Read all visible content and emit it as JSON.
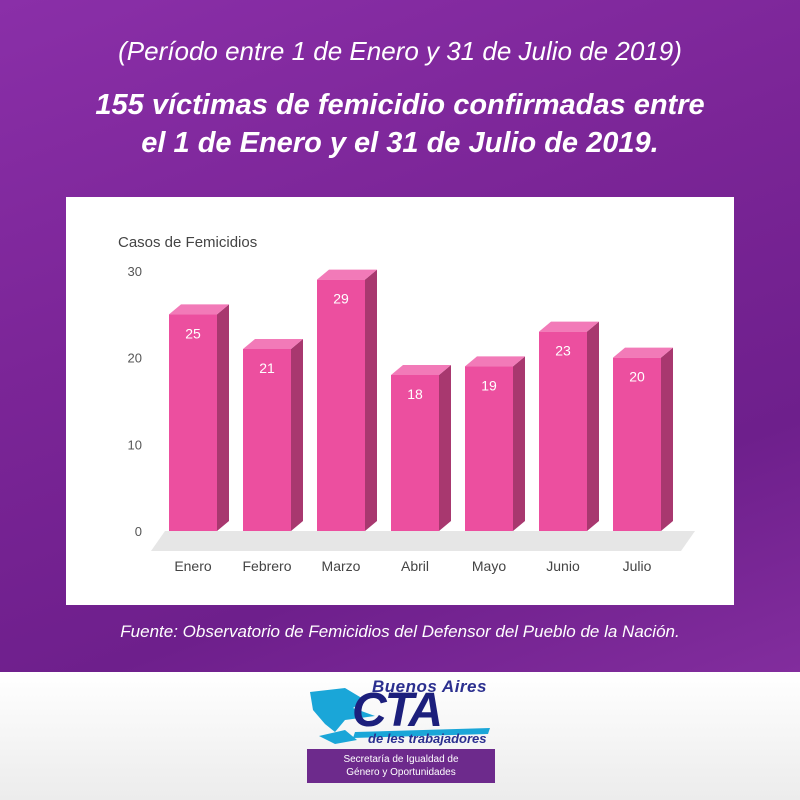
{
  "period": "(Período entre 1 de Enero y 31 de Julio de 2019)",
  "headline": {
    "line1": "155 víctimas de femicidio confirmadas entre",
    "line2": "el 1 de Enero y el 31 de Julio de 2019."
  },
  "source": "Fuente: Observatorio de Femicidios del Defensor del Pueblo de la Nación.",
  "logo": {
    "top_text": "Buenos Aires",
    "main_text": "CTA",
    "sub_text": "de les trabajadores"
  },
  "secretaria": {
    "line1": "Secretaría de Igualdad de",
    "line2": "Género y Oportunidades"
  },
  "colors": {
    "background": "#7b2597",
    "bar_front": "#ec4f9f",
    "bar_side": "#a8386f",
    "bar_top": "#f27ab8",
    "label_text": "#ffffff"
  },
  "chart_data": {
    "type": "bar",
    "title": "",
    "ylabel": "Casos de Femicidios",
    "xlabel": "",
    "categories": [
      "Enero",
      "Febrero",
      "Marzo",
      "Abril",
      "Mayo",
      "Junio",
      "Julio"
    ],
    "values": [
      25,
      21,
      29,
      18,
      19,
      23,
      20
    ],
    "yticks": [
      0,
      10,
      20,
      30
    ],
    "ylim": [
      0,
      30
    ],
    "grid": false,
    "legend": "none",
    "data_labels": true
  }
}
